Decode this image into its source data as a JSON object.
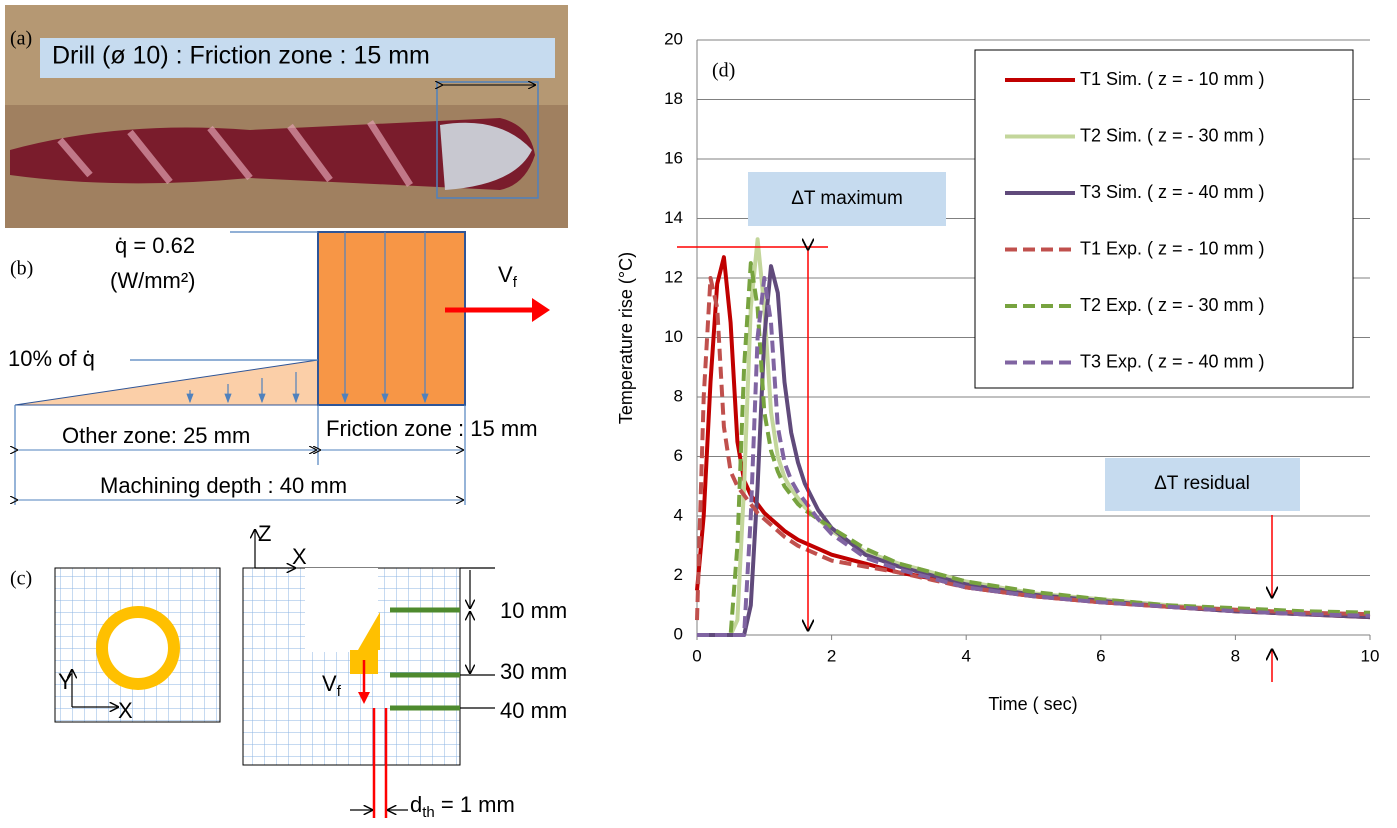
{
  "panel_a": {
    "label": "(a)",
    "caption": "Drill (ø 10) : Friction zone : 15 mm"
  },
  "panel_b": {
    "label": "(b)",
    "flux": "q̇ = 0.62",
    "flux_unit": "(W/mm²)",
    "feed": "V",
    "feed_sub": "f",
    "ratio": "10% of q̇",
    "other_zone": "Other zone: 25 mm",
    "friction_zone": "Friction zone : 15 mm",
    "depth": "Machining depth : 40 mm"
  },
  "panel_c": {
    "label": "(c)",
    "axis_z": "Z",
    "axis_x_side": "X",
    "axis_y": "Y",
    "axis_x_top": "X",
    "depth_1": "10 mm",
    "depth_2": "30 mm",
    "depth_3": "40 mm",
    "feed": "V",
    "feed_sub": "f",
    "dth": "d",
    "dth_sub": "th",
    "dth_value": " = 1 mm"
  },
  "chart_data": {
    "type": "line",
    "panel_label": "(d)",
    "x_label": "Time ( sec)",
    "y_label": "Temperature rise (°C)",
    "xlim": [
      0,
      10
    ],
    "ylim": [
      0,
      20
    ],
    "xticks": [
      0,
      2,
      4,
      6,
      8,
      10
    ],
    "yticks": [
      0,
      2,
      4,
      6,
      8,
      10,
      12,
      14,
      16,
      18,
      20
    ],
    "grid": true,
    "legend": "upper right",
    "annotations": [
      "ΔT maximum",
      "ΔT residual"
    ],
    "x": [
      0,
      0.1,
      0.2,
      0.3,
      0.4,
      0.5,
      0.6,
      0.7,
      0.8,
      0.9,
      1.0,
      1.1,
      1.2,
      1.3,
      1.4,
      1.5,
      1.6,
      1.8,
      2,
      2.5,
      3,
      3.5,
      4,
      5,
      6,
      7,
      8,
      9,
      10
    ],
    "series": [
      {
        "name": "T1 Sim. ( z = - 10 mm )",
        "color": "#c00000",
        "style": "solid",
        "values": [
          1.5,
          4,
          8.5,
          11.8,
          12.7,
          10.5,
          6.5,
          5.2,
          4.7,
          4.4,
          4.1,
          3.9,
          3.7,
          3.5,
          3.35,
          3.2,
          3.1,
          2.9,
          2.7,
          2.4,
          2.1,
          1.9,
          1.6,
          1.3,
          1.1,
          0.95,
          0.8,
          0.7,
          0.6
        ]
      },
      {
        "name": "T2 Sim. ( z = - 30 mm )",
        "color": "#c3d69b",
        "style": "solid",
        "values": [
          0,
          0,
          0,
          0,
          0,
          0,
          0.5,
          5,
          11,
          13.3,
          11,
          7.5,
          6,
          5.3,
          4.9,
          4.6,
          4.3,
          3.9,
          3.5,
          2.8,
          2.4,
          2.1,
          1.8,
          1.4,
          1.2,
          1.0,
          0.85,
          0.75,
          0.65
        ]
      },
      {
        "name": "T3 Sim. ( z = - 40 mm )",
        "color": "#604a7b",
        "style": "solid",
        "values": [
          0,
          0,
          0,
          0,
          0,
          0,
          0,
          0,
          1,
          5,
          10,
          12.4,
          11.5,
          8.5,
          6.8,
          5.8,
          5.1,
          4.2,
          3.6,
          2.7,
          2.3,
          2,
          1.7,
          1.35,
          1.15,
          0.95,
          0.8,
          0.7,
          0.6
        ]
      },
      {
        "name": "T1 Exp. ( z = - 10 mm )",
        "color": "#c0504d",
        "style": "dashed",
        "values": [
          0.5,
          8,
          12,
          11,
          7,
          5.5,
          5,
          4.7,
          4.4,
          4.1,
          3.9,
          3.7,
          3.5,
          3.3,
          3.15,
          3,
          2.9,
          2.7,
          2.5,
          2.3,
          2.1,
          1.85,
          1.6,
          1.3,
          1.1,
          0.95,
          0.85,
          0.75,
          0.7
        ]
      },
      {
        "name": "T2 Exp. ( z = - 30 mm )",
        "color": "#77a33f",
        "style": "dashed",
        "values": [
          0,
          0,
          0,
          0,
          0,
          0,
          3,
          9,
          12.5,
          11,
          7.5,
          6.2,
          5.5,
          5,
          4.7,
          4.4,
          4.2,
          3.9,
          3.6,
          2.9,
          2.4,
          2.1,
          1.8,
          1.45,
          1.2,
          1.0,
          0.9,
          0.8,
          0.75
        ]
      },
      {
        "name": "T3 Exp. ( z = - 40 mm )",
        "color": "#8064a2",
        "style": "dashed",
        "values": [
          0,
          0,
          0,
          0,
          0,
          0,
          0,
          0,
          4,
          10,
          12,
          10.5,
          7,
          5.8,
          5.2,
          4.8,
          4.5,
          3.9,
          3.4,
          2.6,
          2.2,
          1.9,
          1.6,
          1.3,
          1.1,
          0.95,
          0.8,
          0.7,
          0.65
        ]
      }
    ]
  }
}
